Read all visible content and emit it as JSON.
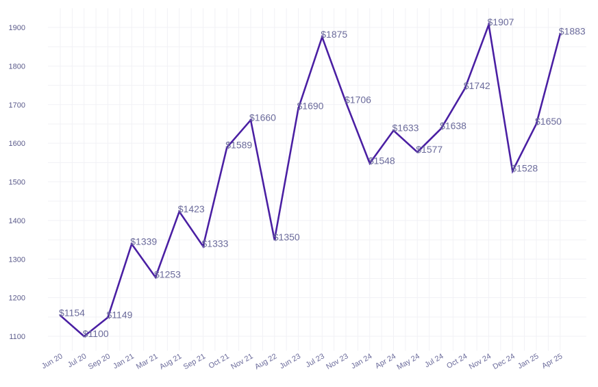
{
  "chart_data": {
    "type": "line",
    "title": "",
    "xlabel": "",
    "ylabel": "",
    "categories": [
      "Jun 20",
      "Jul 20",
      "Sep 20",
      "Jan 21",
      "Mar 21",
      "Aug 21",
      "Sep 21",
      "Oct 21",
      "Nov 21",
      "Aug 22",
      "Jun 23",
      "Jul 23",
      "Nov 23",
      "Jan 24",
      "Apr 24",
      "May 24",
      "Jul 24",
      "Oct 24",
      "Nov 24",
      "Dec 24",
      "Jan 25",
      "Apr 25"
    ],
    "values": [
      1154,
      1100,
      1149,
      1339,
      1253,
      1423,
      1333,
      1589,
      1660,
      1350,
      1690,
      1875,
      1706,
      1548,
      1633,
      1577,
      1638,
      1742,
      1907,
      1528,
      1650,
      1883
    ],
    "labels": [
      "$1154",
      "$1100",
      "$1149",
      "$1339",
      "$1253",
      "$1423",
      "$1333",
      "$1589",
      "$1660",
      "$1350",
      "$1690",
      "$1875",
      "$1706",
      "$1548",
      "$1633",
      "$1577",
      "$1638",
      "$1742",
      "$1907",
      "$1528",
      "$1650",
      "$1883"
    ],
    "yticks": [
      "1100",
      "1200",
      "1300",
      "1400",
      "1500",
      "1600",
      "1700",
      "1800",
      "1900"
    ],
    "ylim": [
      1080,
      1920
    ],
    "grid": true,
    "line_color": "#4a1fa3"
  }
}
